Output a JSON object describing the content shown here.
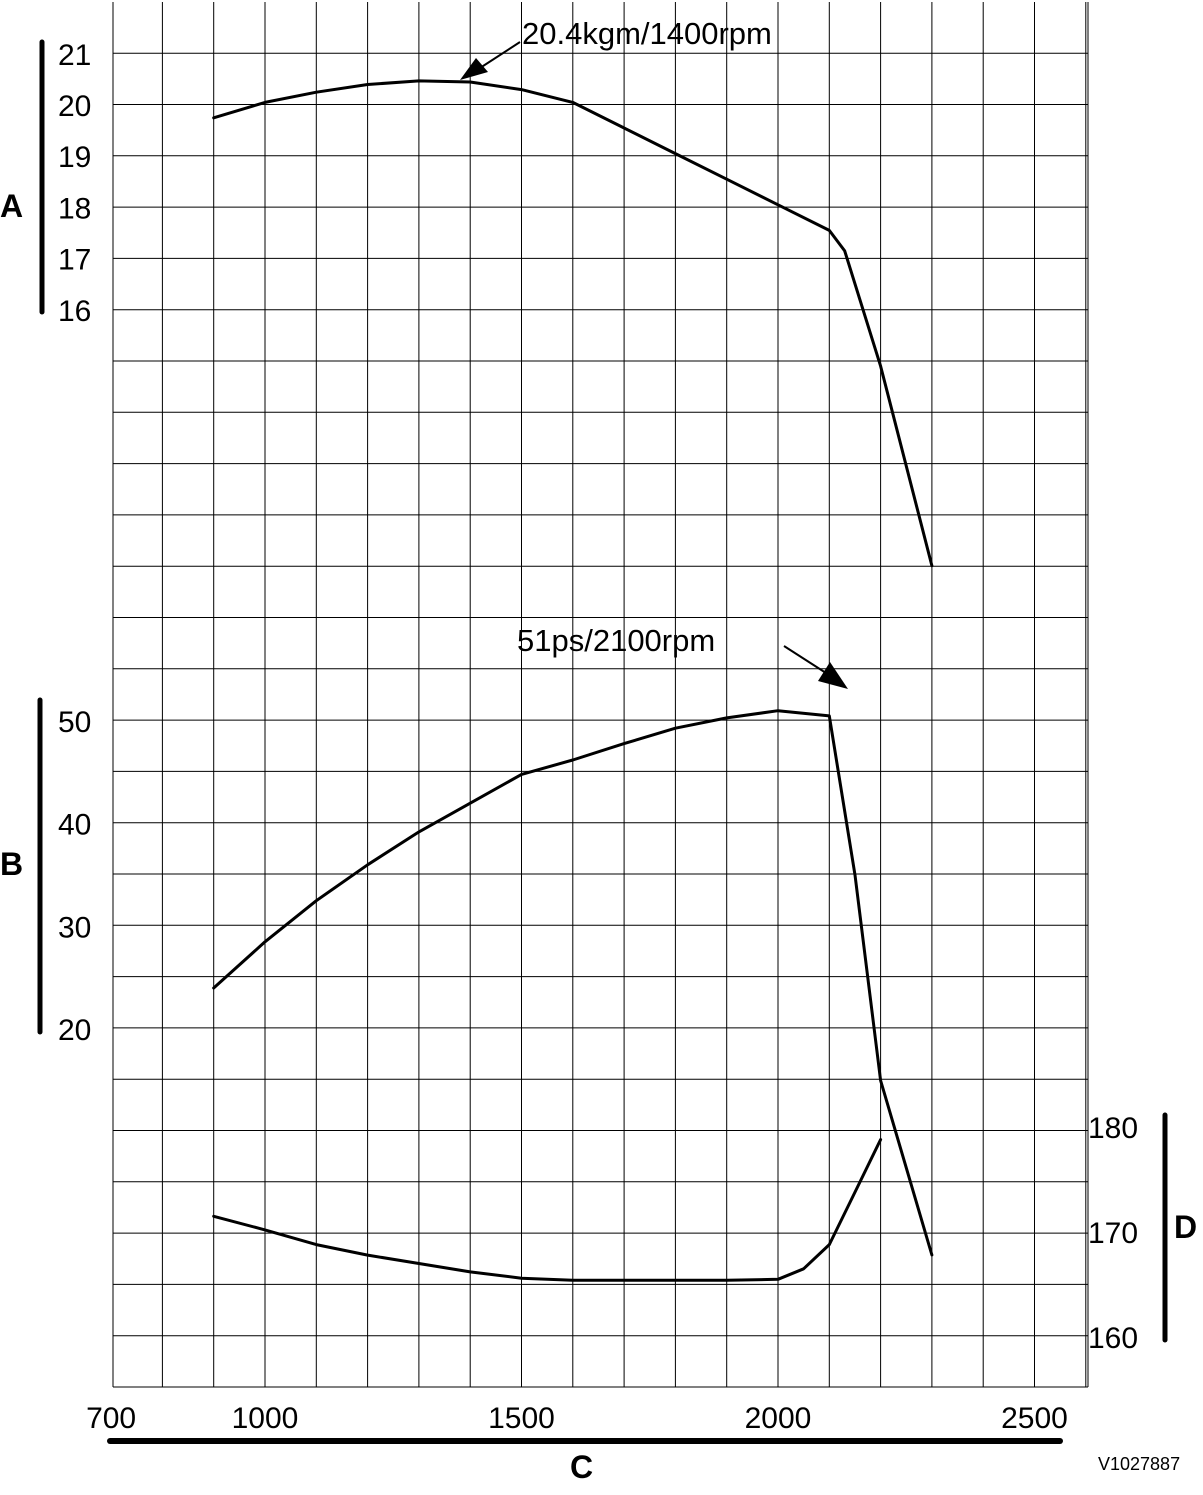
{
  "figure_id": "V1027887",
  "chart_data": {
    "type": "line",
    "x": {
      "label": "C",
      "range": [
        700,
        2600
      ],
      "tick_labels": [
        700,
        1000,
        1500,
        2000,
        2500
      ],
      "grid_step": 100
    },
    "axes": {
      "A": {
        "label": "A",
        "side": "left",
        "tick_labels": [
          21,
          20,
          19,
          18,
          17,
          16
        ]
      },
      "B": {
        "label": "B",
        "side": "left",
        "tick_labels": [
          50,
          40,
          30,
          20
        ]
      },
      "D": {
        "label": "D",
        "side": "right",
        "tick_labels": [
          180,
          170,
          160
        ]
      }
    },
    "grid": true,
    "series": [
      {
        "axis": "A",
        "points": [
          [
            900,
            19.75
          ],
          [
            1000,
            20.05
          ],
          [
            1100,
            20.25
          ],
          [
            1200,
            20.4
          ],
          [
            1300,
            20.47
          ],
          [
            1400,
            20.45
          ],
          [
            1500,
            20.3
          ],
          [
            1600,
            20.05
          ],
          [
            1700,
            19.55
          ],
          [
            1800,
            19.05
          ],
          [
            1900,
            18.55
          ],
          [
            2000,
            18.05
          ],
          [
            2100,
            17.55
          ],
          [
            2130,
            17.15
          ],
          [
            2200,
            14.9
          ],
          [
            2300,
            11.0
          ]
        ]
      },
      {
        "axis": "B",
        "points": [
          [
            900,
            24
          ],
          [
            1000,
            28.5
          ],
          [
            1100,
            32.5
          ],
          [
            1200,
            36
          ],
          [
            1300,
            39.2
          ],
          [
            1400,
            42
          ],
          [
            1500,
            44.8
          ],
          [
            1600,
            46.2
          ],
          [
            1700,
            47.8
          ],
          [
            1800,
            49.3
          ],
          [
            1900,
            50.3
          ],
          [
            2000,
            51.0
          ],
          [
            2100,
            50.5
          ],
          [
            2150,
            35
          ],
          [
            2200,
            15
          ],
          [
            2300,
            -2
          ]
        ]
      },
      {
        "axis": "D",
        "points": [
          [
            900,
            171.5
          ],
          [
            1000,
            170.2
          ],
          [
            1100,
            168.8
          ],
          [
            1200,
            167.8
          ],
          [
            1300,
            167
          ],
          [
            1400,
            166.2
          ],
          [
            1500,
            165.6
          ],
          [
            1600,
            165.4
          ],
          [
            1700,
            165.4
          ],
          [
            1800,
            165.4
          ],
          [
            1900,
            165.4
          ],
          [
            2000,
            165.5
          ],
          [
            2050,
            166.5
          ],
          [
            2100,
            168.8
          ],
          [
            2150,
            173.8
          ],
          [
            2200,
            178.8
          ]
        ]
      }
    ],
    "annotations": [
      {
        "text": "20.4kgm/1400rpm"
      },
      {
        "text": "51ps/2100rpm"
      }
    ]
  }
}
